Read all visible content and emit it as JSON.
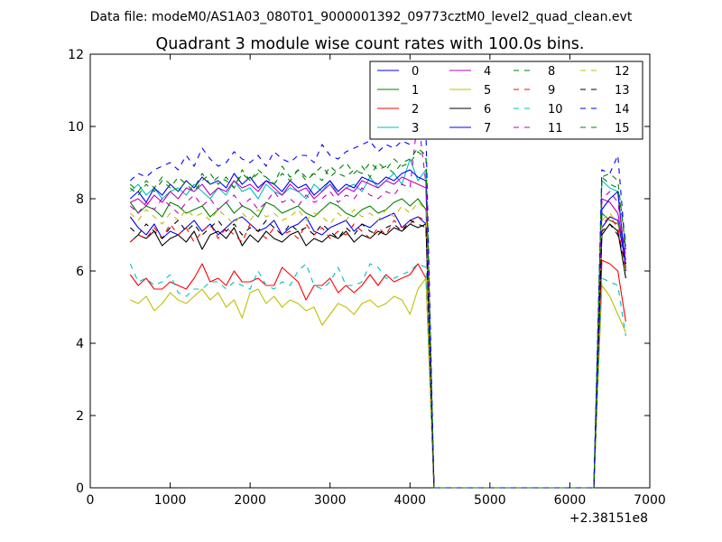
{
  "figure": {
    "suptitle": "Data file: modeM0/AS1A03_080T01_9000001392_09773cztM0_level2_quad_clean.evt"
  },
  "chart_data": {
    "type": "line",
    "title": "Quadrant 3 module wise count rates with 100.0s bins.",
    "xlabel": "",
    "ylabel": "",
    "x_offset_label": "+2.38151e8",
    "xlim": [
      0,
      7000
    ],
    "ylim": [
      0,
      12
    ],
    "xticks": [
      0,
      1000,
      2000,
      3000,
      4000,
      5000,
      6000,
      7000
    ],
    "yticks": [
      0,
      2,
      4,
      6,
      8,
      10,
      12
    ],
    "grid": false,
    "legend_position": "top-right",
    "legend_columns": 4,
    "x": [
      500,
      600,
      700,
      800,
      900,
      1000,
      1100,
      1200,
      1300,
      1400,
      1500,
      1600,
      1700,
      1800,
      1900,
      2000,
      2100,
      2200,
      2300,
      2400,
      2500,
      2600,
      2700,
      2800,
      2900,
      3000,
      3100,
      3200,
      3300,
      3400,
      3500,
      3600,
      3700,
      3800,
      3900,
      4000,
      4100,
      4200,
      4300,
      4400,
      4500,
      4600,
      4700,
      4800,
      4900,
      5000,
      5100,
      5200,
      5300,
      5400,
      5500,
      5600,
      5700,
      5800,
      5900,
      6000,
      6100,
      6200,
      6300,
      6400,
      6500,
      6600,
      6700
    ],
    "series": [
      {
        "name": "0",
        "color": "#0000ff",
        "dash": "solid",
        "values": [
          7.5,
          7.2,
          7.0,
          7.3,
          6.9,
          7.1,
          7.0,
          7.2,
          7.4,
          7.1,
          7.3,
          7.0,
          7.2,
          7.4,
          7.5,
          7.3,
          7.1,
          7.2,
          7.4,
          7.0,
          7.2,
          7.3,
          7.5,
          7.1,
          7.0,
          7.2,
          7.3,
          7.4,
          7.1,
          7.3,
          7.2,
          7.4,
          7.5,
          7.6,
          7.2,
          7.4,
          7.5,
          7.3,
          0,
          0,
          0,
          0,
          0,
          0,
          0,
          0,
          0,
          0,
          0,
          0,
          0,
          0,
          0,
          0,
          0,
          0,
          0,
          0,
          0,
          7.2,
          7.5,
          7.4,
          6.2
        ]
      },
      {
        "name": "1",
        "color": "#008000",
        "dash": "solid",
        "values": [
          7.9,
          7.6,
          7.8,
          7.7,
          7.5,
          7.9,
          7.8,
          7.6,
          7.7,
          7.8,
          7.5,
          7.7,
          7.9,
          7.6,
          7.8,
          7.7,
          7.5,
          7.9,
          7.8,
          7.6,
          7.7,
          7.8,
          7.6,
          7.5,
          7.7,
          7.9,
          7.8,
          7.6,
          7.5,
          7.7,
          7.8,
          7.6,
          7.7,
          7.9,
          8.0,
          7.8,
          8.0,
          7.7,
          0,
          0,
          0,
          0,
          0,
          0,
          0,
          0,
          0,
          0,
          0,
          0,
          0,
          0,
          0,
          0,
          0,
          0,
          0,
          0,
          0,
          7.6,
          7.4,
          7.3,
          6.7
        ]
      },
      {
        "name": "2",
        "color": "#ff0000",
        "dash": "solid",
        "values": [
          5.9,
          5.6,
          5.8,
          5.5,
          5.5,
          5.7,
          5.6,
          5.5,
          5.8,
          6.2,
          5.7,
          5.8,
          5.6,
          6.0,
          5.7,
          5.7,
          5.8,
          5.6,
          5.6,
          6.1,
          5.9,
          5.7,
          5.2,
          5.6,
          5.6,
          5.8,
          5.4,
          5.6,
          5.4,
          5.6,
          5.9,
          5.6,
          5.9,
          5.7,
          5.8,
          5.9,
          6.2,
          5.8,
          0,
          0,
          0,
          0,
          0,
          0,
          0,
          0,
          0,
          0,
          0,
          0,
          0,
          0,
          0,
          0,
          0,
          0,
          0,
          0,
          0,
          6.3,
          6.2,
          6.0,
          4.6
        ]
      },
      {
        "name": "3",
        "color": "#00bfbf",
        "dash": "solid",
        "values": [
          8.2,
          8.4,
          8.1,
          8.3,
          8.0,
          8.2,
          8.3,
          8.1,
          8.4,
          8.2,
          8.0,
          8.3,
          8.1,
          8.5,
          8.2,
          8.3,
          8.0,
          8.4,
          8.2,
          8.1,
          8.3,
          8.2,
          8.0,
          8.4,
          8.2,
          8.5,
          8.1,
          8.3,
          8.4,
          8.2,
          8.6,
          8.3,
          8.5,
          8.7,
          8.4,
          9.1,
          8.5,
          8.8,
          0,
          0,
          0,
          0,
          0,
          0,
          0,
          0,
          0,
          0,
          0,
          0,
          0,
          0,
          0,
          0,
          0,
          0,
          0,
          0,
          0,
          8.5,
          8.3,
          8.2,
          6.1
        ]
      },
      {
        "name": "4",
        "color": "#bf00bf",
        "dash": "solid",
        "values": [
          7.9,
          8.0,
          7.8,
          8.1,
          7.9,
          8.2,
          8.0,
          8.3,
          8.2,
          8.4,
          8.1,
          8.3,
          8.2,
          8.5,
          8.3,
          8.4,
          8.2,
          8.5,
          8.3,
          8.1,
          8.4,
          8.2,
          8.3,
          8.0,
          8.2,
          8.4,
          8.1,
          8.3,
          8.2,
          8.5,
          8.4,
          8.3,
          8.5,
          8.4,
          8.6,
          8.5,
          8.4,
          8.3,
          0,
          0,
          0,
          0,
          0,
          0,
          0,
          0,
          0,
          0,
          0,
          0,
          0,
          0,
          0,
          0,
          0,
          0,
          0,
          0,
          0,
          8.0,
          7.9,
          7.6,
          6.3
        ]
      },
      {
        "name": "5",
        "color": "#bfbf00",
        "dash": "solid",
        "values": [
          5.2,
          5.1,
          5.3,
          4.9,
          5.1,
          5.4,
          5.2,
          5.1,
          5.3,
          5.5,
          5.2,
          5.4,
          5.0,
          5.2,
          4.7,
          5.4,
          5.5,
          5.1,
          5.3,
          5.0,
          5.2,
          5.1,
          4.9,
          5.0,
          4.5,
          4.8,
          5.1,
          5.0,
          4.8,
          5.1,
          5.2,
          5.0,
          5.1,
          5.3,
          5.2,
          4.8,
          5.5,
          5.8,
          0,
          0,
          0,
          0,
          0,
          0,
          0,
          0,
          0,
          0,
          0,
          0,
          0,
          0,
          0,
          0,
          0,
          0,
          0,
          0,
          0,
          5.6,
          5.3,
          4.8,
          4.3
        ]
      },
      {
        "name": "6",
        "color": "#000000",
        "dash": "solid",
        "values": [
          6.8,
          7.0,
          6.9,
          7.1,
          6.7,
          6.9,
          7.0,
          6.8,
          7.1,
          6.6,
          7.0,
          7.1,
          6.9,
          7.2,
          6.7,
          7.0,
          6.8,
          7.1,
          6.9,
          6.8,
          7.0,
          7.1,
          6.7,
          6.9,
          6.8,
          7.0,
          6.9,
          7.1,
          6.8,
          7.0,
          6.9,
          7.1,
          7.0,
          7.2,
          7.1,
          7.3,
          7.2,
          7.3,
          0,
          0,
          0,
          0,
          0,
          0,
          0,
          0,
          0,
          0,
          0,
          0,
          0,
          0,
          0,
          0,
          0,
          0,
          0,
          0,
          0,
          7.0,
          7.3,
          7.1,
          5.8
        ]
      },
      {
        "name": "7",
        "color": "#0000ff",
        "dash": "solid",
        "values": [
          8.0,
          8.2,
          7.9,
          8.3,
          8.1,
          8.4,
          8.2,
          8.5,
          8.3,
          8.6,
          8.4,
          8.5,
          8.3,
          8.7,
          8.4,
          8.6,
          8.3,
          8.5,
          8.4,
          8.2,
          8.5,
          8.3,
          8.4,
          8.1,
          8.3,
          8.5,
          8.2,
          8.4,
          8.3,
          8.6,
          8.5,
          8.4,
          8.6,
          8.5,
          8.7,
          8.8,
          8.6,
          8.5,
          0,
          0,
          0,
          0,
          0,
          0,
          0,
          0,
          0,
          0,
          0,
          0,
          0,
          0,
          0,
          0,
          0,
          0,
          0,
          0,
          0,
          7.7,
          8.0,
          8.2,
          6.0
        ]
      },
      {
        "name": "8",
        "color": "#008000",
        "dash": "dashed",
        "values": [
          8.3,
          8.1,
          8.4,
          8.2,
          8.5,
          8.3,
          8.6,
          8.4,
          8.2,
          8.5,
          8.7,
          8.4,
          8.6,
          8.3,
          8.8,
          8.5,
          8.7,
          8.6,
          8.4,
          8.9,
          8.6,
          8.8,
          8.5,
          8.7,
          8.9,
          8.6,
          8.8,
          9.0,
          8.7,
          8.9,
          8.6,
          9.0,
          8.8,
          9.1,
          8.9,
          9.0,
          9.3,
          9.1,
          0,
          0,
          0,
          0,
          0,
          0,
          0,
          0,
          0,
          0,
          0,
          0,
          0,
          0,
          0,
          0,
          0,
          0,
          0,
          0,
          0,
          8.6,
          8.4,
          8.3,
          6.8
        ]
      },
      {
        "name": "9",
        "color": "#ff0000",
        "dash": "dashed",
        "values": [
          6.8,
          7.0,
          6.9,
          7.2,
          6.9,
          7.3,
          7.0,
          7.2,
          6.8,
          7.1,
          7.3,
          6.9,
          7.2,
          7.0,
          6.8,
          7.3,
          7.1,
          6.9,
          7.2,
          7.0,
          7.1,
          6.9,
          7.3,
          7.0,
          7.2,
          6.9,
          7.1,
          7.0,
          7.3,
          7.1,
          6.9,
          7.2,
          7.0,
          7.4,
          7.2,
          7.3,
          7.5,
          7.4,
          0,
          0,
          0,
          0,
          0,
          0,
          0,
          0,
          0,
          0,
          0,
          0,
          0,
          0,
          0,
          0,
          0,
          0,
          0,
          0,
          0,
          7.3,
          7.5,
          7.2,
          6.0
        ]
      },
      {
        "name": "10",
        "color": "#00bfbf",
        "dash": "dashed",
        "values": [
          6.2,
          5.7,
          5.8,
          5.6,
          5.7,
          5.9,
          5.4,
          5.3,
          5.5,
          5.5,
          5.7,
          5.7,
          5.5,
          5.7,
          5.6,
          5.5,
          6.0,
          5.6,
          5.5,
          5.7,
          5.6,
          6.0,
          6.2,
          5.6,
          5.5,
          5.7,
          6.1,
          5.6,
          5.6,
          5.7,
          6.2,
          6.1,
          5.8,
          5.8,
          5.9,
          6.0,
          6.2,
          6.1,
          0,
          0,
          0,
          0,
          0,
          0,
          0,
          0,
          0,
          0,
          0,
          0,
          0,
          0,
          0,
          0,
          0,
          0,
          0,
          0,
          0,
          5.8,
          5.7,
          5.6,
          4.2
        ]
      },
      {
        "name": "11",
        "color": "#bf00bf",
        "dash": "dashed",
        "values": [
          7.8,
          7.6,
          7.9,
          7.7,
          8.0,
          7.8,
          7.6,
          7.9,
          8.1,
          7.8,
          8.0,
          7.7,
          7.9,
          8.1,
          7.8,
          8.0,
          7.7,
          7.9,
          8.2,
          7.9,
          8.0,
          7.8,
          8.1,
          7.9,
          8.0,
          8.2,
          7.9,
          8.1,
          8.0,
          8.3,
          8.1,
          8.0,
          8.2,
          8.1,
          8.4,
          8.3,
          10.3,
          8.4,
          0,
          0,
          0,
          0,
          0,
          0,
          0,
          0,
          0,
          0,
          0,
          0,
          0,
          0,
          0,
          0,
          0,
          0,
          0,
          0,
          0,
          8.0,
          8.2,
          7.9,
          6.4
        ]
      },
      {
        "name": "12",
        "color": "#bfbf00",
        "dash": "dashed",
        "values": [
          7.6,
          7.4,
          7.7,
          7.5,
          7.3,
          7.6,
          7.4,
          7.7,
          7.5,
          7.6,
          7.4,
          7.7,
          7.5,
          7.3,
          7.6,
          7.4,
          7.7,
          7.5,
          7.6,
          7.4,
          7.5,
          7.7,
          7.4,
          7.6,
          7.5,
          7.3,
          7.6,
          7.4,
          7.7,
          7.5,
          7.6,
          7.4,
          7.7,
          7.5,
          7.8,
          7.6,
          7.9,
          7.7,
          0,
          0,
          0,
          0,
          0,
          0,
          0,
          0,
          0,
          0,
          0,
          0,
          0,
          0,
          0,
          0,
          0,
          0,
          0,
          0,
          0,
          7.4,
          7.6,
          7.3,
          5.9
        ]
      },
      {
        "name": "13",
        "color": "#000000",
        "dash": "dashed",
        "values": [
          7.2,
          7.0,
          7.3,
          7.1,
          6.9,
          7.2,
          7.4,
          7.1,
          7.3,
          7.0,
          7.2,
          7.4,
          7.1,
          7.3,
          7.0,
          7.2,
          7.1,
          7.4,
          7.2,
          7.0,
          7.3,
          7.1,
          7.2,
          7.0,
          7.3,
          7.1,
          6.9,
          7.2,
          7.0,
          7.3,
          7.1,
          7.0,
          7.2,
          7.3,
          7.1,
          7.4,
          7.3,
          7.2,
          0,
          0,
          0,
          0,
          0,
          0,
          0,
          0,
          0,
          0,
          0,
          0,
          0,
          0,
          0,
          0,
          0,
          0,
          0,
          0,
          0,
          7.1,
          7.3,
          7.0,
          6.2
        ]
      },
      {
        "name": "14",
        "color": "#0000ff",
        "dash": "dashed",
        "values": [
          8.5,
          8.7,
          8.6,
          8.8,
          8.9,
          9.0,
          8.8,
          9.2,
          8.9,
          9.4,
          9.1,
          8.9,
          9.0,
          9.3,
          9.1,
          9.0,
          9.2,
          8.9,
          9.3,
          9.1,
          9.0,
          9.2,
          9.2,
          9.0,
          9.5,
          9.2,
          9.1,
          9.3,
          9.4,
          9.5,
          9.6,
          9.3,
          9.5,
          9.4,
          9.6,
          9.5,
          10.5,
          9.8,
          0,
          0,
          0,
          0,
          0,
          0,
          0,
          0,
          0,
          0,
          0,
          0,
          0,
          0,
          0,
          0,
          0,
          0,
          0,
          0,
          0,
          8.8,
          8.7,
          9.2,
          6.5
        ]
      },
      {
        "name": "15",
        "color": "#008000",
        "dash": "dashed",
        "values": [
          8.4,
          8.2,
          8.5,
          8.3,
          8.6,
          8.4,
          8.2,
          8.5,
          8.3,
          8.7,
          8.4,
          8.6,
          8.5,
          8.3,
          8.7,
          8.5,
          8.8,
          8.6,
          8.4,
          8.7,
          8.5,
          8.8,
          8.6,
          8.7,
          8.5,
          8.9,
          8.7,
          8.6,
          8.8,
          8.7,
          9.0,
          8.8,
          8.9,
          8.7,
          9.0,
          9.1,
          9.4,
          9.2,
          0,
          0,
          0,
          0,
          0,
          0,
          0,
          0,
          0,
          0,
          0,
          0,
          0,
          0,
          0,
          0,
          0,
          0,
          0,
          0,
          0,
          8.6,
          8.7,
          8.5,
          6.6
        ]
      }
    ]
  }
}
